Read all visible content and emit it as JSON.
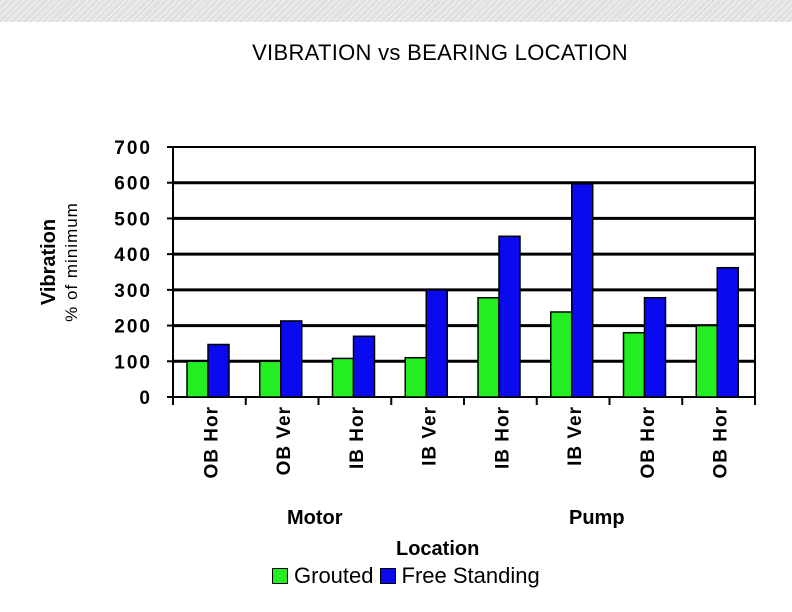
{
  "chart_data": {
    "type": "bar",
    "title": "VIBRATION vs BEARING LOCATION",
    "ylabel": "Vibration",
    "ylabel_sub": "% of minimum",
    "xlabel": "Location",
    "categories": [
      "OB Hor",
      "OB Ver",
      "IB Hor",
      "IB Ver",
      "IB Hor",
      "IB Ver",
      "OB Hor",
      "OB Hor"
    ],
    "groups": [
      {
        "label": "Motor",
        "categories": [
          "OB Hor",
          "OB Ver",
          "IB Hor",
          "IB Ver"
        ]
      },
      {
        "label": "Pump",
        "categories": [
          "IB Hor",
          "IB Ver",
          "OB Hor",
          "OB Hor"
        ]
      }
    ],
    "series": [
      {
        "name": "Grouted",
        "color": "#22ee22",
        "values": [
          100,
          100,
          108,
          110,
          278,
          238,
          180,
          200
        ]
      },
      {
        "name": "Free Standing",
        "color": "#0a0aee",
        "values": [
          147,
          213,
          170,
          300,
          450,
          597,
          278,
          362
        ]
      }
    ],
    "ylim": [
      0,
      700
    ],
    "yticks": [
      0,
      100,
      200,
      300,
      400,
      500,
      600,
      700
    ],
    "grid": true,
    "legend_position": "bottom"
  }
}
